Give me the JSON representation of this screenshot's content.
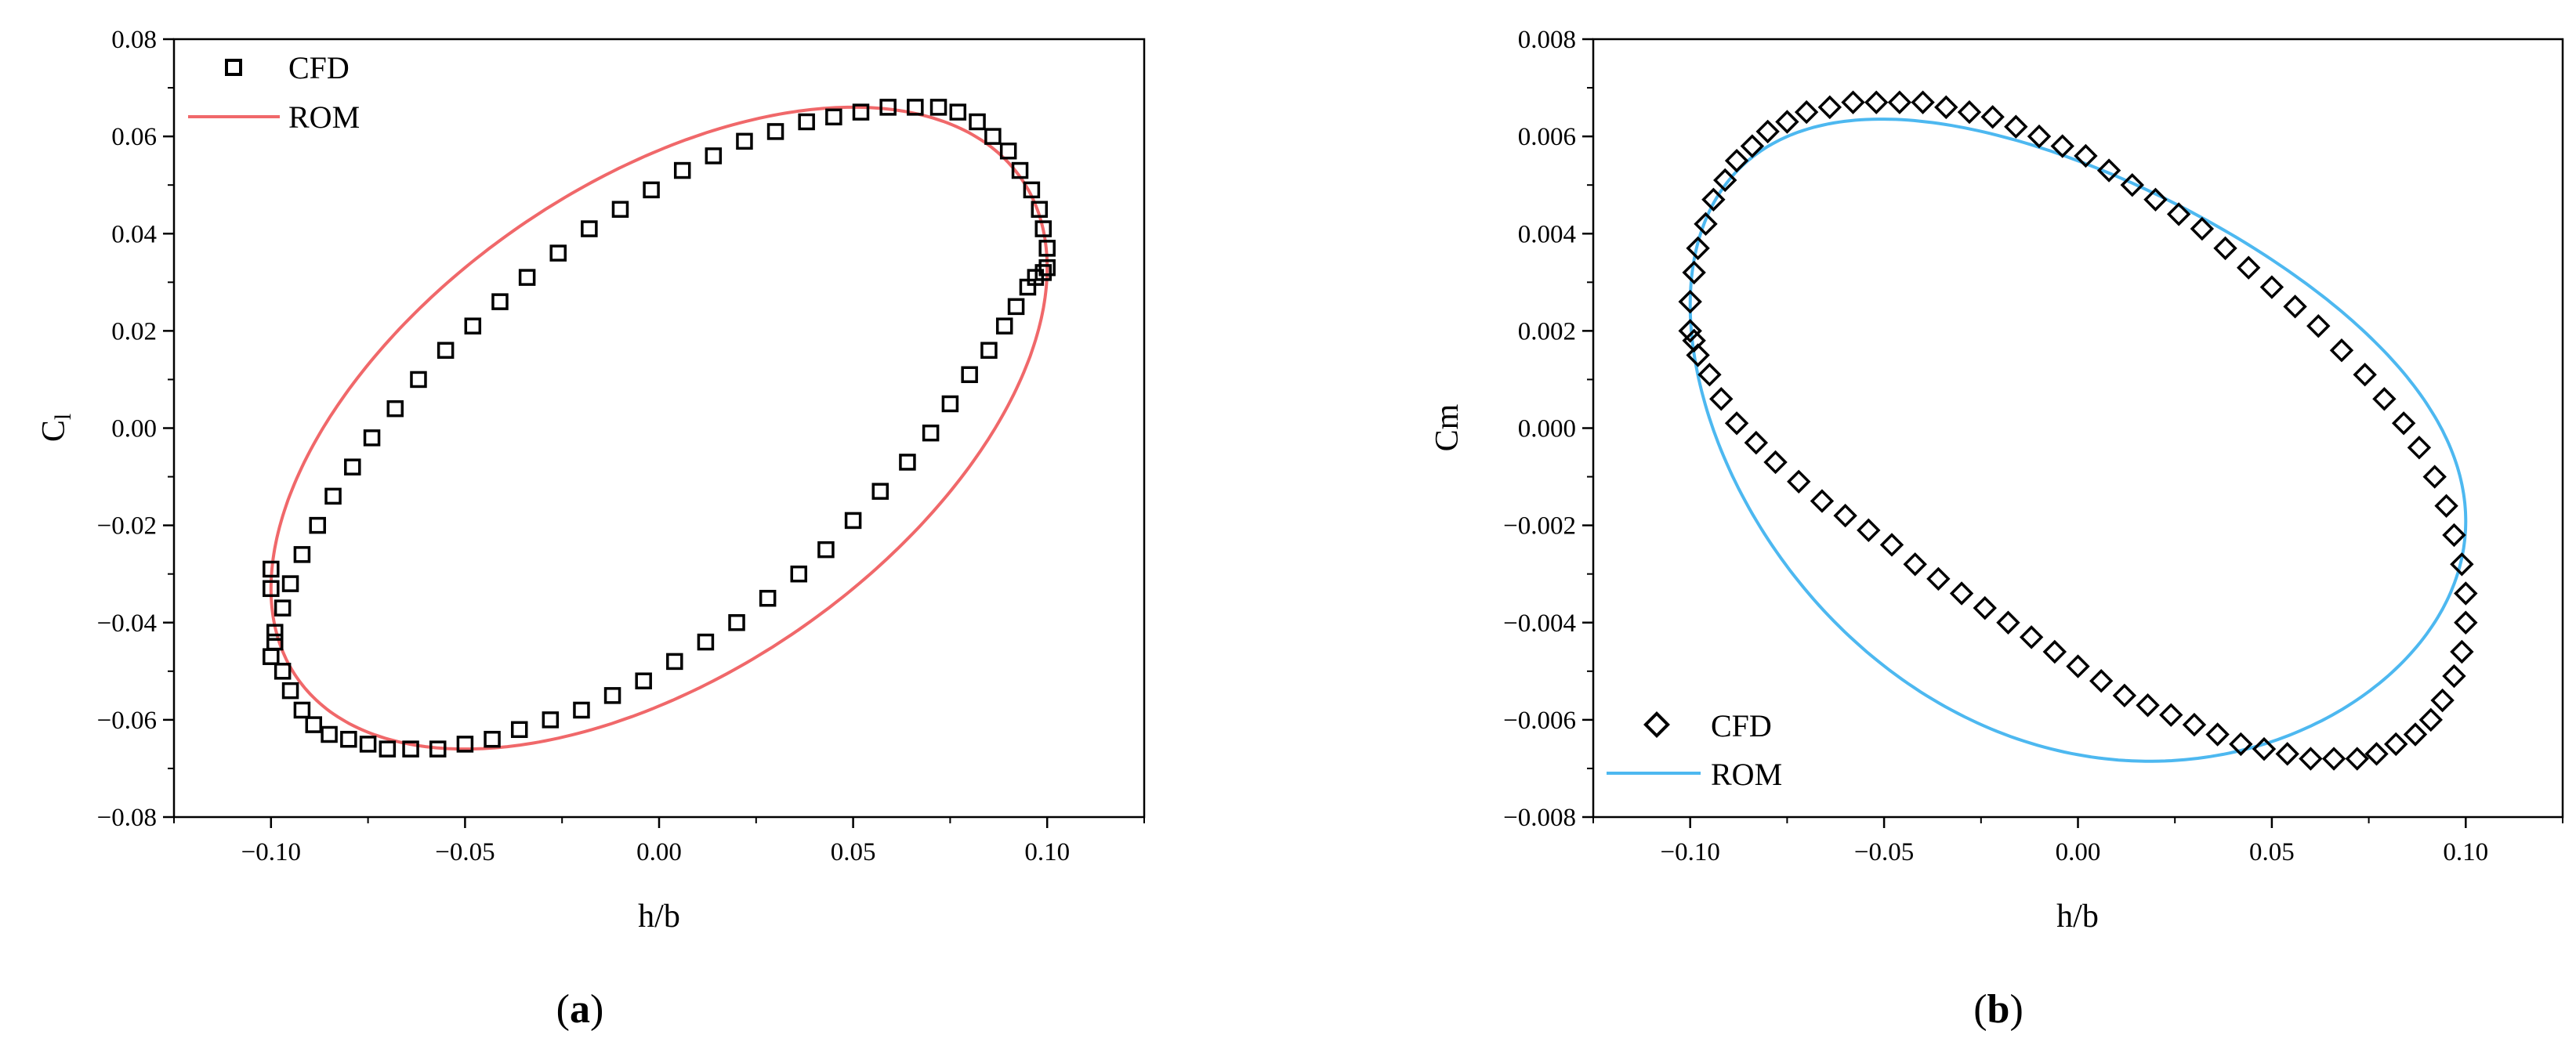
{
  "chart_data": [
    {
      "type": "scatter",
      "panel_label": "a",
      "xlabel": "h/b",
      "ylabel": "C",
      "ylabel_sub": "l",
      "xlim": [
        -0.125,
        0.125
      ],
      "ylim": [
        -0.08,
        0.08
      ],
      "xticks": [
        -0.1,
        -0.05,
        0.0,
        0.05,
        0.1
      ],
      "xtick_labels": [
        "−0.10",
        "−0.05",
        "0.00",
        "0.05",
        "0.10"
      ],
      "yticks": [
        -0.08,
        -0.06,
        -0.04,
        -0.02,
        0.0,
        0.02,
        0.04,
        0.06,
        0.08
      ],
      "ytick_labels": [
        "−0.08",
        "−0.06",
        "−0.04",
        "−0.02",
        "0.00",
        "0.02",
        "0.04",
        "0.06",
        "0.08"
      ],
      "legend": {
        "position": "top-left",
        "entries": [
          "CFD",
          "ROM"
        ]
      },
      "series": [
        {
          "name": "CFD",
          "kind": "markers",
          "marker": "square",
          "color": "#000000",
          "x": [
            0.1,
            0.1,
            0.099,
            0.098,
            0.096,
            0.093,
            0.09,
            0.086,
            0.082,
            0.077,
            0.072,
            0.066,
            0.059,
            0.052,
            0.045,
            0.038,
            0.03,
            0.022,
            0.014,
            0.006,
            -0.002,
            -0.01,
            -0.018,
            -0.026,
            -0.034,
            -0.041,
            -0.048,
            -0.055,
            -0.062,
            -0.068,
            -0.074,
            -0.079,
            -0.084,
            -0.088,
            -0.092,
            -0.095,
            -0.097,
            -0.099,
            -0.1,
            -0.1,
            -0.1,
            -0.099,
            -0.097,
            -0.095,
            -0.092,
            -0.089,
            -0.085,
            -0.08,
            -0.075,
            -0.07,
            -0.064,
            -0.057,
            -0.05,
            -0.043,
            -0.036,
            -0.028,
            -0.02,
            -0.012,
            -0.004,
            0.004,
            0.012,
            0.02,
            0.028,
            0.036,
            0.043,
            0.05,
            0.057,
            0.064,
            0.07,
            0.075,
            0.08,
            0.085,
            0.089,
            0.092,
            0.095,
            0.097,
            0.099
          ],
          "y": [
            0.033,
            0.037,
            0.041,
            0.045,
            0.049,
            0.053,
            0.057,
            0.06,
            0.063,
            0.065,
            0.066,
            0.066,
            0.066,
            0.065,
            0.064,
            0.063,
            0.061,
            0.059,
            0.056,
            0.053,
            0.049,
            0.045,
            0.041,
            0.036,
            0.031,
            0.026,
            0.021,
            0.016,
            0.01,
            0.004,
            -0.002,
            -0.008,
            -0.014,
            -0.02,
            -0.026,
            -0.032,
            -0.037,
            -0.042,
            -0.047,
            -0.033,
            -0.029,
            -0.044,
            -0.05,
            -0.054,
            -0.058,
            -0.061,
            -0.063,
            -0.064,
            -0.065,
            -0.066,
            -0.066,
            -0.066,
            -0.065,
            -0.064,
            -0.062,
            -0.06,
            -0.058,
            -0.055,
            -0.052,
            -0.048,
            -0.044,
            -0.04,
            -0.035,
            -0.03,
            -0.025,
            -0.019,
            -0.013,
            -0.007,
            -0.001,
            0.005,
            0.011,
            0.016,
            0.021,
            0.025,
            0.029,
            0.031,
            0.032
          ]
        },
        {
          "name": "ROM",
          "kind": "line",
          "color": "#F0686A",
          "center_x": 0.0,
          "center_y": 0.0,
          "amp_x": 0.1,
          "amp_y": 0.066,
          "phase_deg": 60
        }
      ]
    },
    {
      "type": "scatter",
      "panel_label": "b",
      "xlabel": "h/b",
      "ylabel": "Cm",
      "xlim": [
        -0.125,
        0.125
      ],
      "ylim": [
        -0.008,
        0.008
      ],
      "xticks": [
        -0.1,
        -0.05,
        0.0,
        0.05,
        0.1
      ],
      "xtick_labels": [
        "−0.10",
        "−0.05",
        "0.00",
        "0.05",
        "0.10"
      ],
      "yticks": [
        -0.008,
        -0.006,
        -0.004,
        -0.002,
        0.0,
        0.002,
        0.004,
        0.006,
        0.008
      ],
      "ytick_labels": [
        "−0.008",
        "−0.006",
        "−0.004",
        "−0.002",
        "0.000",
        "0.002",
        "0.004",
        "0.006",
        "0.008"
      ],
      "legend": {
        "position": "bottom-left",
        "entries": [
          "CFD",
          "ROM"
        ]
      },
      "series": [
        {
          "name": "CFD",
          "kind": "markers",
          "marker": "diamond",
          "color": "#000000",
          "x": [
            -0.1,
            -0.1,
            -0.099,
            -0.098,
            -0.096,
            -0.094,
            -0.091,
            -0.088,
            -0.084,
            -0.08,
            -0.075,
            -0.07,
            -0.064,
            -0.058,
            -0.052,
            -0.046,
            -0.04,
            -0.034,
            -0.028,
            -0.022,
            -0.016,
            -0.01,
            -0.004,
            0.002,
            0.008,
            0.014,
            0.02,
            0.026,
            0.032,
            0.038,
            0.044,
            0.05,
            0.056,
            0.062,
            0.068,
            0.074,
            0.079,
            0.084,
            0.088,
            0.092,
            0.095,
            0.097,
            0.099,
            0.1,
            0.1,
            0.099,
            0.097,
            0.094,
            0.091,
            0.087,
            0.082,
            0.077,
            0.072,
            0.066,
            0.06,
            0.054,
            0.048,
            0.042,
            0.036,
            0.03,
            0.024,
            0.018,
            0.012,
            0.006,
            0.0,
            -0.006,
            -0.012,
            -0.018,
            -0.024,
            -0.03,
            -0.036,
            -0.042,
            -0.048,
            -0.054,
            -0.06,
            -0.066,
            -0.072,
            -0.078,
            -0.083,
            -0.088,
            -0.092,
            -0.095,
            -0.098,
            -0.099
          ],
          "y": [
            0.002,
            0.0026,
            0.0032,
            0.0037,
            0.0042,
            0.0047,
            0.0051,
            0.0055,
            0.0058,
            0.0061,
            0.0063,
            0.0065,
            0.0066,
            0.0067,
            0.0067,
            0.0067,
            0.0067,
            0.0066,
            0.0065,
            0.0064,
            0.0062,
            0.006,
            0.0058,
            0.0056,
            0.0053,
            0.005,
            0.0047,
            0.0044,
            0.0041,
            0.0037,
            0.0033,
            0.0029,
            0.0025,
            0.0021,
            0.0016,
            0.0011,
            0.0006,
            0.0001,
            -0.0004,
            -0.001,
            -0.0016,
            -0.0022,
            -0.0028,
            -0.0034,
            -0.004,
            -0.0046,
            -0.0051,
            -0.0056,
            -0.006,
            -0.0063,
            -0.0065,
            -0.0067,
            -0.0068,
            -0.0068,
            -0.0068,
            -0.0067,
            -0.0066,
            -0.0065,
            -0.0063,
            -0.0061,
            -0.0059,
            -0.0057,
            -0.0055,
            -0.0052,
            -0.0049,
            -0.0046,
            -0.0043,
            -0.004,
            -0.0037,
            -0.0034,
            -0.0031,
            -0.0028,
            -0.0024,
            -0.0021,
            -0.0018,
            -0.0015,
            -0.0011,
            -0.0007,
            -0.0003,
            0.0001,
            0.0006,
            0.0011,
            0.0015,
            0.0018
          ],
          "trace_note": "closed loop"
        },
        {
          "name": "ROM",
          "kind": "line",
          "color": "#4DB8F0",
          "center_x": 0.0,
          "center_y": -0.00015,
          "amp_x": 0.1,
          "amp_y": 0.0065,
          "phase_deg": -110,
          "h2_amp": 0.0006,
          "h2_phase_deg": 40
        }
      ]
    }
  ],
  "captions": {
    "a": {
      "open": "(",
      "letter": "a",
      "close": ")"
    },
    "b": {
      "open": "(",
      "letter": "b",
      "close": ")"
    }
  }
}
